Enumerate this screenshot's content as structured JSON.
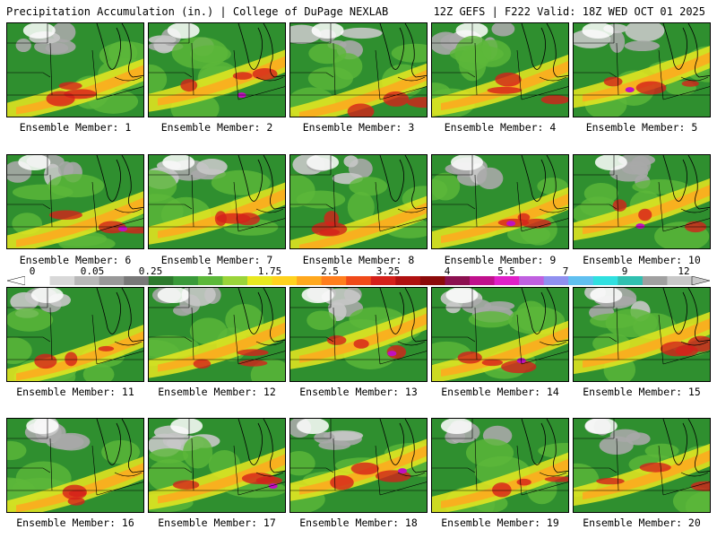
{
  "header": {
    "title": "Precipitation Accumulation (in.) | College of DuPage NEXLAB",
    "run_info": "12Z GEFS | F222 Valid: 18Z WED OCT 01 2025"
  },
  "members": [
    "Ensemble Member: 1",
    "Ensemble Member: 2",
    "Ensemble Member: 3",
    "Ensemble Member: 4",
    "Ensemble Member: 5",
    "Ensemble Member: 6",
    "Ensemble Member: 7",
    "Ensemble Member: 8",
    "Ensemble Member: 9",
    "Ensemble Member: 10",
    "Ensemble Member: 11",
    "Ensemble Member: 12",
    "Ensemble Member: 13",
    "Ensemble Member: 14",
    "Ensemble Member: 15",
    "Ensemble Member: 16",
    "Ensemble Member: 17",
    "Ensemble Member: 18",
    "Ensemble Member: 19",
    "Ensemble Member: 20"
  ],
  "colorbar": {
    "ticks": [
      "0",
      "0.05",
      "0.25",
      "1",
      "1.75",
      "2.5",
      "3.25",
      "4",
      "5.5",
      "7",
      "9",
      "12"
    ],
    "colors": [
      "#ffffff",
      "#d8d8d8",
      "#b8b8b8",
      "#989898",
      "#787878",
      "#2c7a2c",
      "#3a9a3a",
      "#5cb83a",
      "#9ad43a",
      "#e8e820",
      "#ffd21e",
      "#ffa81e",
      "#ff7e1e",
      "#f04a1a",
      "#d4201a",
      "#b01010",
      "#8c0a0a",
      "#8c1050",
      "#c0108c",
      "#e020c8",
      "#c060e0",
      "#9090f0",
      "#60c0f0",
      "#30e0e0",
      "#30c0b0",
      "#a0a0a0",
      "#c8c8c8"
    ]
  }
}
